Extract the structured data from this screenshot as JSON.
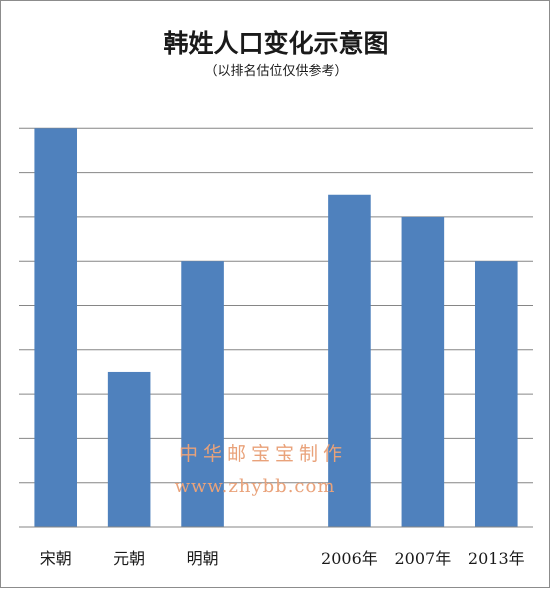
{
  "colors": {
    "bar": "#4f81bd",
    "grid": "#868686",
    "axis": "#868686",
    "watermark": "#e9a27a"
  },
  "watermark": {
    "line1": "中华邮宝宝制作",
    "line2": "www.zhybb.com"
  },
  "chart_data": {
    "type": "bar",
    "title": "韩姓人口变化示意图",
    "subtitle": "（以排名估位仅供参考）",
    "categories": [
      "宋朝",
      "元朝",
      "明朝",
      "",
      "2006年",
      "2007年",
      "2013年"
    ],
    "values": [
      9,
      3.5,
      6,
      0,
      7.5,
      7,
      6
    ],
    "ylim": [
      0,
      10
    ],
    "gridlines": 9,
    "grid": true,
    "xlabel": "",
    "ylabel": ""
  }
}
